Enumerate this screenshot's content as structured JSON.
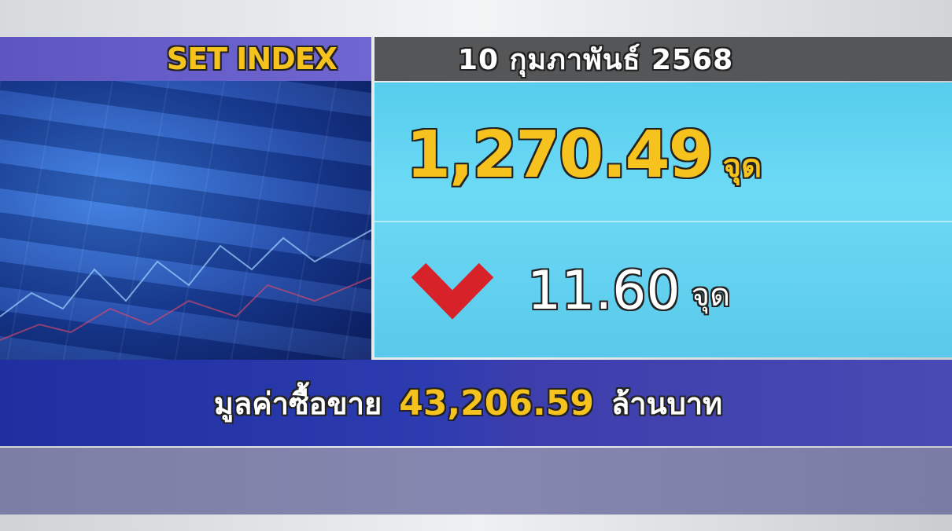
{
  "header": {
    "title": "SET INDEX",
    "date": "10 กุมภาพันธ์ 2568"
  },
  "index": {
    "value": "1,270.49",
    "unit": "จุด"
  },
  "change": {
    "direction": "down",
    "icon": "red-down-chevron-icon",
    "value": "11.60",
    "unit": "จุด"
  },
  "volume": {
    "label": "มูลค่าซื้อขาย",
    "value": "43,206.59",
    "unit": "ล้านบาท"
  },
  "colors": {
    "accent_yellow": "#f6c21e",
    "down_red": "#d8222a",
    "panel_cyan": "#62d3f0",
    "bar_blue": "#2c3cb0"
  }
}
